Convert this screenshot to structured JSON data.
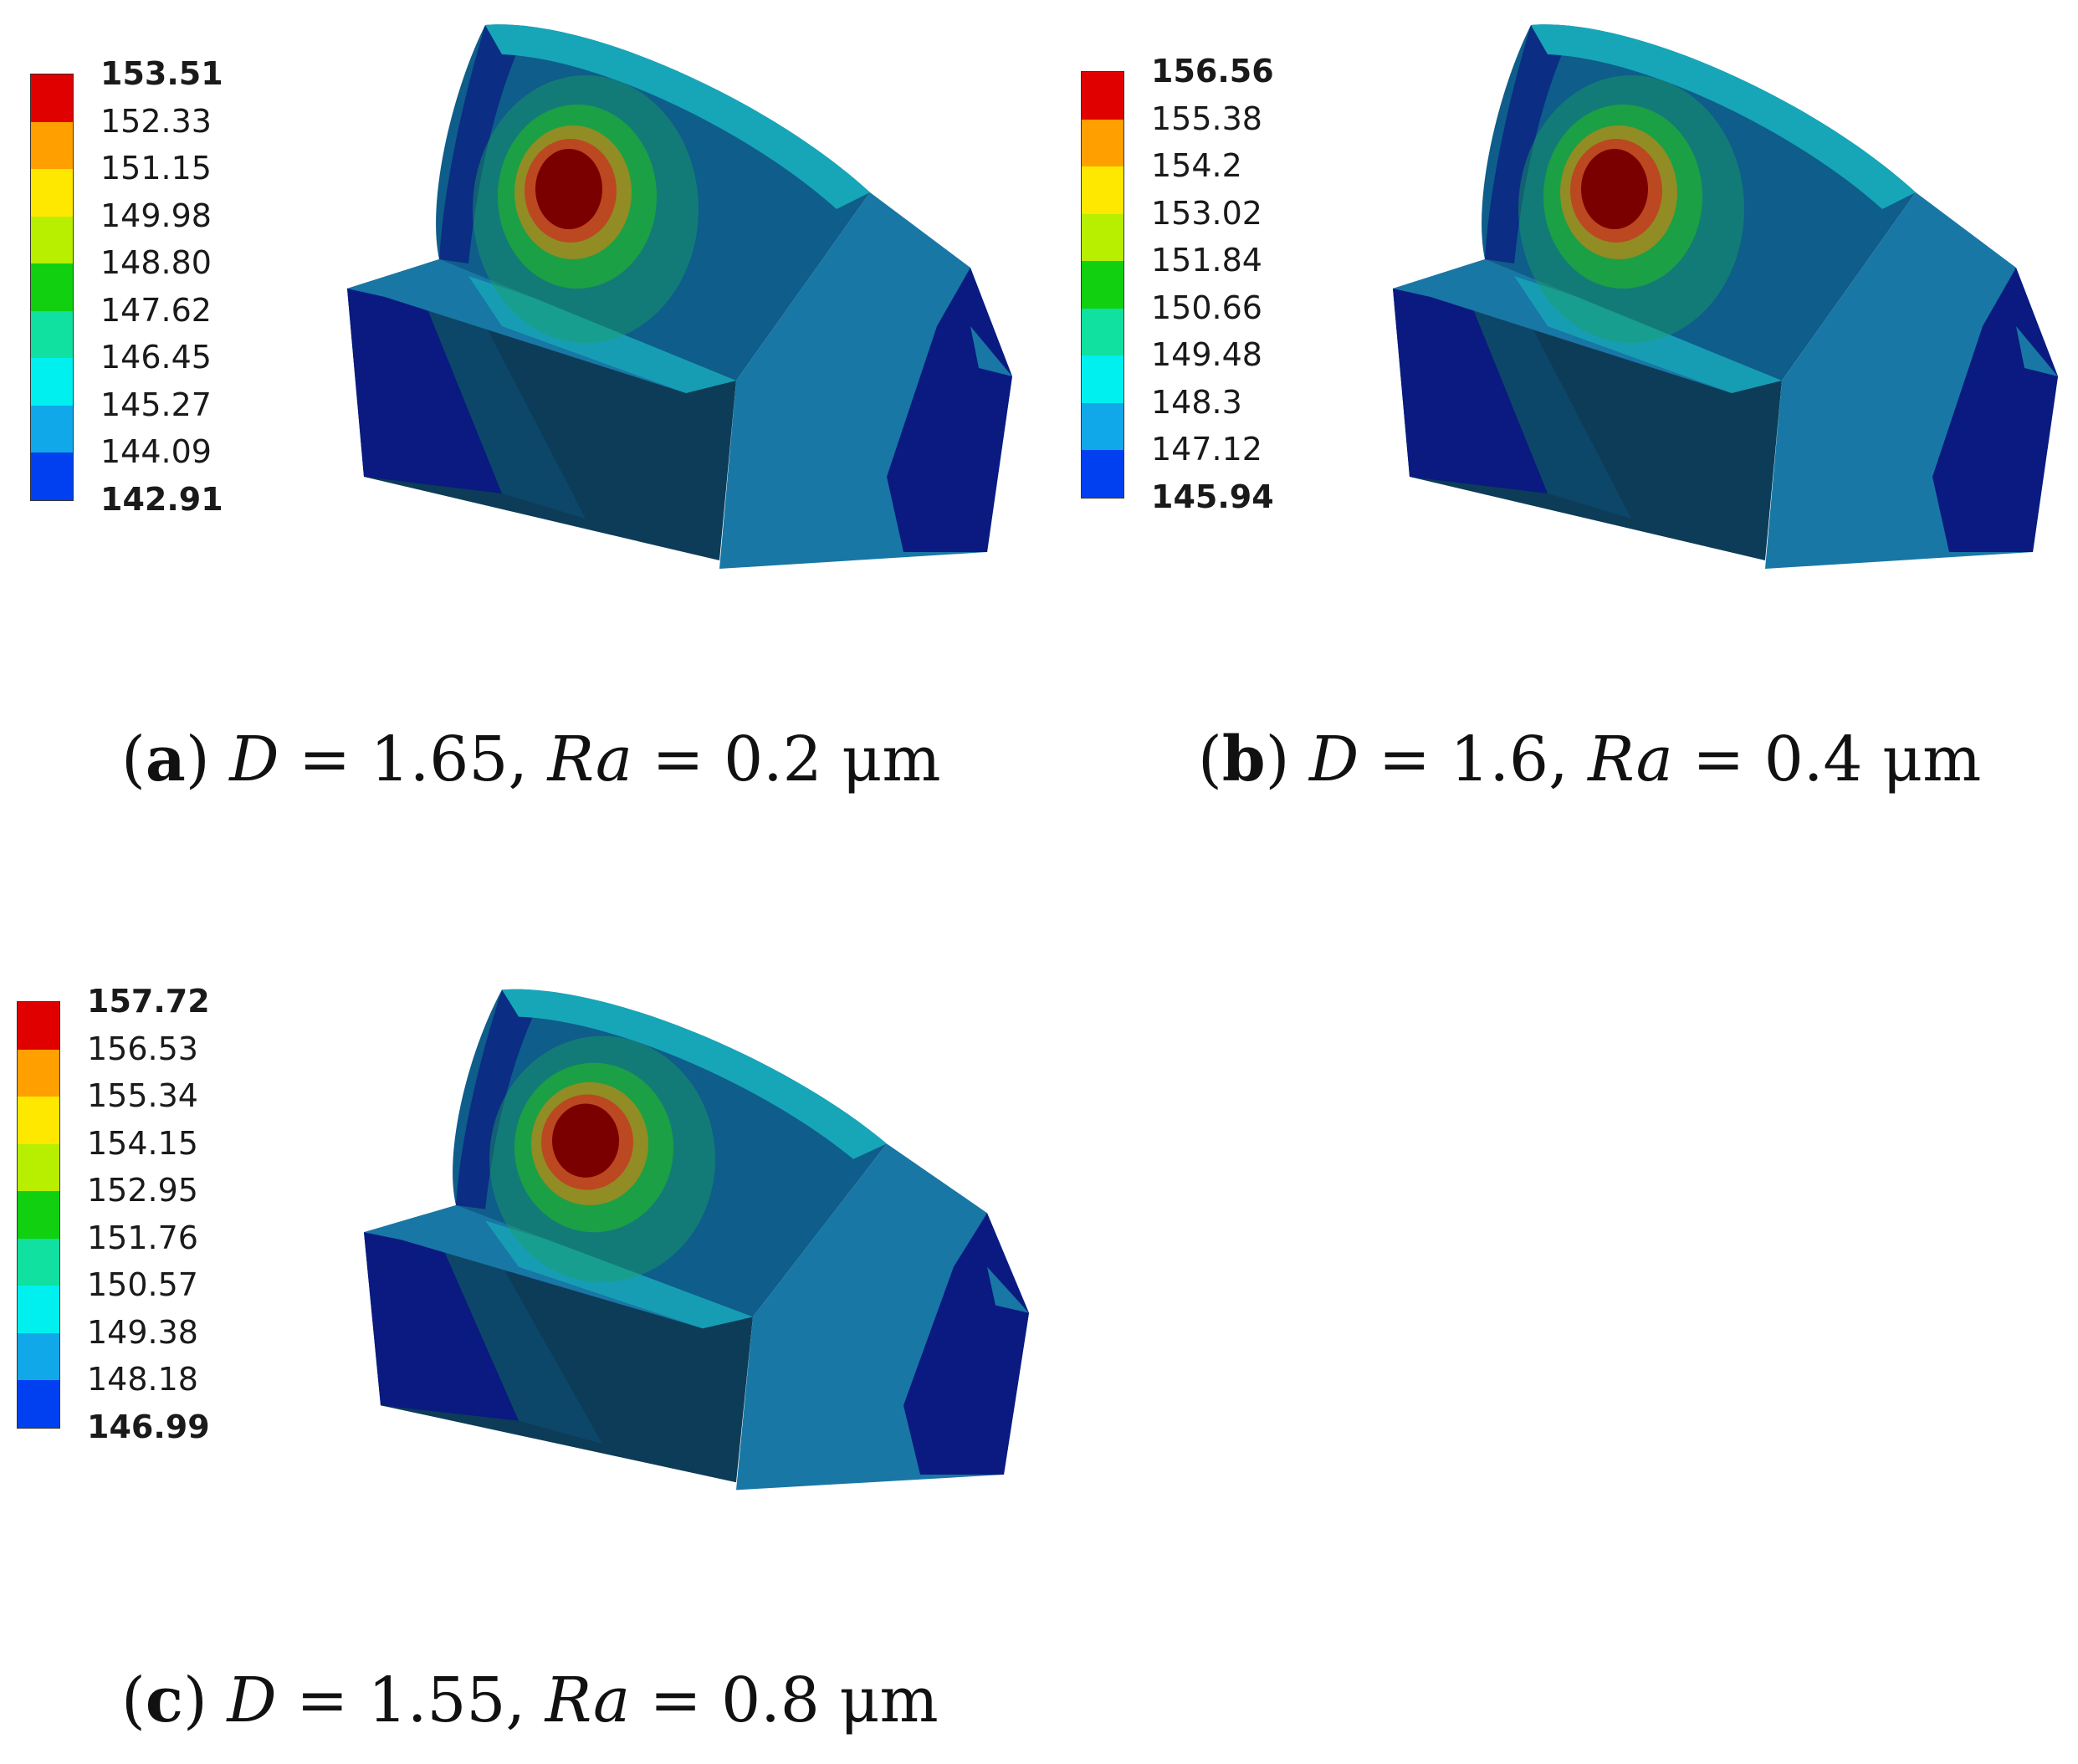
{
  "panels": [
    {
      "id": "a",
      "legend": [
        "153.51",
        "152.33",
        "151.15",
        "149.98",
        "148.80",
        "147.62",
        "146.45",
        "145.27",
        "144.09",
        "142.91"
      ],
      "caption": {
        "letter": "a",
        "d_label": "D",
        "d_value": "= 1.65,",
        "ra_label": "Ra",
        "ra_value": "= 0.2 μm"
      }
    },
    {
      "id": "b",
      "legend": [
        "156.56",
        "155.38",
        "154.2",
        "153.02",
        "151.84",
        "150.66",
        "149.48",
        "148.3",
        "147.12",
        "145.94"
      ],
      "caption": {
        "letter": "b",
        "d_label": "D",
        "d_value": "= 1.6,",
        "ra_label": "Ra",
        "ra_value": "= 0.4 μm"
      }
    },
    {
      "id": "c",
      "legend": [
        "157.72",
        "156.53",
        "155.34",
        "154.15",
        "152.95",
        "151.76",
        "150.57",
        "149.38",
        "148.18",
        "146.99"
      ],
      "caption": {
        "letter": "c",
        "d_label": "D",
        "d_value": "= 1.55,",
        "ra_label": "Ra",
        "ra_value": "= 0.8 μm"
      }
    }
  ],
  "colors": {
    "scale": [
      "#e00000",
      "#ff9f00",
      "#ffe800",
      "#b8ee00",
      "#10d010",
      "#10e0a0",
      "#00f0f0",
      "#10a8e8",
      "#0040f0"
    ],
    "dark_navy": "#0a1a80",
    "deep_teal": "#0c3c58",
    "face_blue": "#0e5d8a",
    "side_blue": "#1877a5",
    "top_teal": "#16a6b8",
    "hot_red": "#7a0000"
  }
}
